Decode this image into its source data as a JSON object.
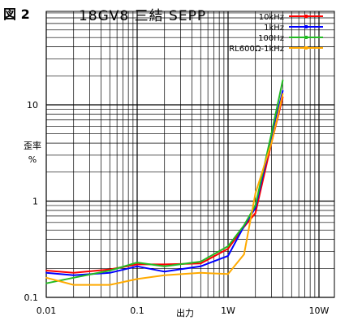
{
  "figure_label": "図 2",
  "chart_data": {
    "type": "line",
    "title": "18GV8 三結 SEPP",
    "xlabel": "出力",
    "ylabel": [
      "歪率",
      "%"
    ],
    "x_scale": "log",
    "y_scale": "log",
    "xlim": [
      0.01,
      10
    ],
    "ylim": [
      0.1,
      30
    ],
    "x_ticks": [
      {
        "value": 0.01,
        "label": "0.01"
      },
      {
        "value": 0.1,
        "label": "0.1"
      },
      {
        "value": 1,
        "label": "1W"
      },
      {
        "value": 10,
        "label": "10W"
      }
    ],
    "y_ticks": [
      {
        "value": 0.1,
        "label": "0.1"
      },
      {
        "value": 1,
        "label": "1"
      },
      {
        "value": 10,
        "label": "10"
      }
    ],
    "grid": true,
    "legend_position": "top-right",
    "series": [
      {
        "name": "10kHz",
        "color": "#ff0000",
        "x": [
          0.01,
          0.02,
          0.05,
          0.1,
          0.2,
          0.5,
          1.0,
          1.5,
          2.0,
          3.0,
          4.0
        ],
        "y": [
          0.19,
          0.18,
          0.195,
          0.22,
          0.22,
          0.225,
          0.32,
          0.54,
          0.75,
          4.0,
          12.0
        ]
      },
      {
        "name": "1kHz",
        "color": "#0000ff",
        "x": [
          0.01,
          0.02,
          0.05,
          0.1,
          0.2,
          0.5,
          1.0,
          1.5,
          2.0,
          3.0,
          4.0
        ],
        "y": [
          0.18,
          0.17,
          0.18,
          0.21,
          0.185,
          0.21,
          0.27,
          0.55,
          0.85,
          4.5,
          14.0
        ]
      },
      {
        "name": "100Hz",
        "color": "#22bb22",
        "x": [
          0.01,
          0.02,
          0.05,
          0.1,
          0.2,
          0.5,
          1.0,
          1.5,
          2.0,
          3.0,
          4.0
        ],
        "y": [
          0.14,
          0.16,
          0.19,
          0.23,
          0.21,
          0.235,
          0.34,
          0.56,
          0.9,
          5.0,
          18.0
        ]
      },
      {
        "name": "RL600Ω-1kHz",
        "color": "#ffaa00",
        "x": [
          0.01,
          0.02,
          0.05,
          0.1,
          0.2,
          0.5,
          1.0,
          1.5,
          2.0,
          3.0,
          4.0
        ],
        "y": [
          0.16,
          0.135,
          0.135,
          0.155,
          0.17,
          0.18,
          0.175,
          0.28,
          1.2,
          4.0,
          13.0
        ]
      }
    ]
  }
}
